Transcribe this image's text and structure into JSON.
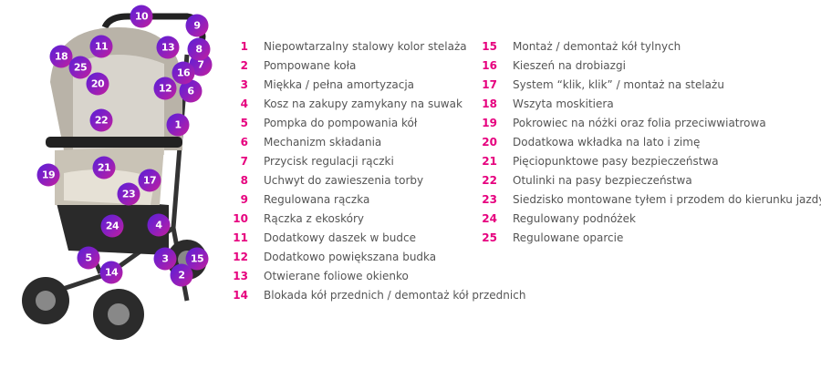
{
  "accent_color": "#e6007e",
  "badge_colors": [
    "#5a1fd6",
    "#c21f9c"
  ],
  "features": [
    {
      "n": "1",
      "label": "Niepowtarzalny stalowy kolor stelaża"
    },
    {
      "n": "2",
      "label": "Pompowane koła"
    },
    {
      "n": "3",
      "label": "Miękka / pełna amortyzacja"
    },
    {
      "n": "4",
      "label": "Kosz na zakupy zamykany na suwak"
    },
    {
      "n": "5",
      "label": "Pompka do pompowania kół"
    },
    {
      "n": "6",
      "label": "Mechanizm składania"
    },
    {
      "n": "7",
      "label": "Przycisk regulacji rączki"
    },
    {
      "n": "8",
      "label": "Uchwyt do zawieszenia torby"
    },
    {
      "n": "9",
      "label": "Regulowana rączka"
    },
    {
      "n": "10",
      "label": "Rączka z ekoskóry"
    },
    {
      "n": "11",
      "label": "Dodatkowy daszek w budce"
    },
    {
      "n": "12",
      "label": "Dodatkowo powiększana budka"
    },
    {
      "n": "13",
      "label": "Otwierane foliowe okienko"
    },
    {
      "n": "14",
      "label": "Blokada kół przednich / demontaż kół przednich"
    },
    {
      "n": "15",
      "label": "Montaż / demontaż kół tylnych"
    },
    {
      "n": "16",
      "label": "Kieszeń na drobiazgi"
    },
    {
      "n": "17",
      "label": "System “klik, klik” / montaż na stelażu"
    },
    {
      "n": "18",
      "label": "Wszyta moskitiera"
    },
    {
      "n": "19",
      "label": "Pokrowiec na nóżki oraz folia przeciwwiatrowa"
    },
    {
      "n": "20",
      "label": "Dodatkowa wkładka na lato i zimę"
    },
    {
      "n": "21",
      "label": "Pięciopunktowe pasy bezpieczeństwa"
    },
    {
      "n": "22",
      "label": "Otulinki na pasy bezpieczeństwa"
    },
    {
      "n": "23",
      "label": "Siedzisko montowane tyłem i przodem do kierunku jazdy"
    },
    {
      "n": "24",
      "label": "Regulowany podnóżek"
    },
    {
      "n": "25",
      "label": "Regulowane oparcie"
    }
  ]
}
